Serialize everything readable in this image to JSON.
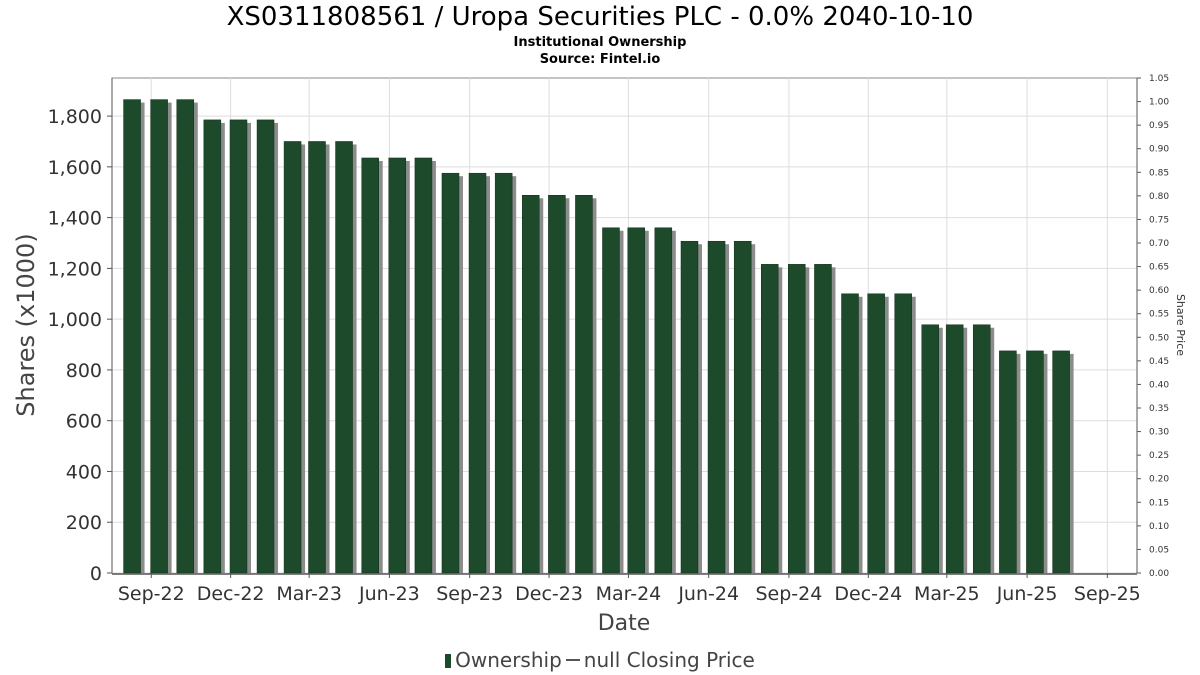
{
  "title": "XS0311808561 / Uropa Securities PLC - 0.0% 2040-10-10",
  "subtitle_lines": [
    "Institutional Ownership",
    "Source: Fintel.io"
  ],
  "colors": {
    "bar": "#1e4a2c",
    "bar_shadow": "#8c8c8c",
    "grid": "#dddddd",
    "axis": "#555555"
  },
  "chart_data": {
    "type": "bar",
    "xlabel": "Date",
    "ylabel": "Shares (x1000)",
    "y2label": "Share Price",
    "ylim": [
      0,
      1950
    ],
    "y2lim": [
      0,
      1.05
    ],
    "y_ticks": [
      0,
      200,
      400,
      600,
      800,
      1000,
      1200,
      1400,
      1600,
      1800
    ],
    "y_tick_labels": [
      "0",
      "200",
      "400",
      "600",
      "800",
      "1,000",
      "1,200",
      "1,400",
      "1,600",
      "1,800"
    ],
    "y2_ticks": [
      0.0,
      0.05,
      0.1,
      0.15,
      0.2,
      0.25,
      0.3,
      0.35,
      0.4,
      0.45,
      0.5,
      0.55,
      0.6,
      0.65,
      0.7,
      0.75,
      0.8,
      0.85,
      0.9,
      0.95,
      1.0,
      1.05
    ],
    "y2_tick_labels": [
      "0.00",
      "0.05",
      "0.10",
      "0.15",
      "0.20",
      "0.25",
      "0.30",
      "0.35",
      "0.40",
      "0.45",
      "0.50",
      "0.55",
      "0.60",
      "0.65",
      "0.70",
      "0.75",
      "0.80",
      "0.85",
      "0.90",
      "0.95",
      "1.00",
      "1.05"
    ],
    "x_range": [
      "2022-07-18",
      "2025-10-05"
    ],
    "x_ticks": [
      "2022-09-01",
      "2022-12-01",
      "2023-03-01",
      "2023-06-01",
      "2023-09-01",
      "2023-12-01",
      "2024-03-01",
      "2024-06-01",
      "2024-09-01",
      "2024-12-01",
      "2025-03-01",
      "2025-06-01",
      "2025-09-01"
    ],
    "x_tick_labels": [
      "Sep-22",
      "Dec-22",
      "Mar-23",
      "Jun-23",
      "Sep-23",
      "Dec-23",
      "Mar-24",
      "Jun-24",
      "Sep-24",
      "Dec-24",
      "Mar-25",
      "Jun-25",
      "Sep-25"
    ],
    "grid": true,
    "legend_position": "bottom",
    "series": [
      {
        "name": "Ownership",
        "type": "bar",
        "x": [
          "2022-08-10",
          "2022-09-10",
          "2022-10-10",
          "2022-11-10",
          "2022-12-10",
          "2023-01-10",
          "2023-02-10",
          "2023-03-10",
          "2023-04-10",
          "2023-05-10",
          "2023-06-10",
          "2023-07-10",
          "2023-08-10",
          "2023-09-10",
          "2023-10-10",
          "2023-11-10",
          "2023-12-10",
          "2024-01-10",
          "2024-02-10",
          "2024-03-10",
          "2024-04-10",
          "2024-05-10",
          "2024-06-10",
          "2024-07-10",
          "2024-08-10",
          "2024-09-10",
          "2024-10-10",
          "2024-11-10",
          "2024-12-10",
          "2025-01-10",
          "2025-02-10",
          "2025-03-10",
          "2025-04-10",
          "2025-05-10",
          "2025-06-10",
          "2025-07-10"
        ],
        "values": [
          1865,
          1865,
          1865,
          1785,
          1785,
          1785,
          1700,
          1700,
          1700,
          1635,
          1635,
          1635,
          1575,
          1575,
          1575,
          1488,
          1488,
          1488,
          1360,
          1360,
          1360,
          1307,
          1307,
          1307,
          1216,
          1216,
          1216,
          1100,
          1100,
          1100,
          978,
          978,
          978,
          875,
          875,
          875
        ]
      },
      {
        "name": "null Closing Price",
        "type": "line",
        "values": []
      }
    ]
  }
}
